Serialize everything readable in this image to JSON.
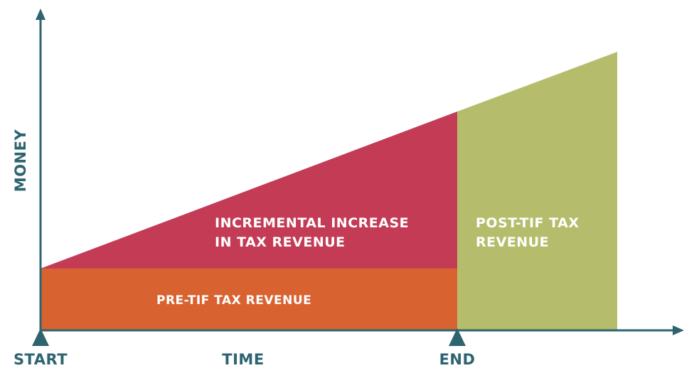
{
  "axes": {
    "y_label": "MONEY",
    "x_label": "TIME"
  },
  "markers": {
    "start": "START",
    "end": "END"
  },
  "regions": {
    "base": "PRE-TIF TAX REVENUE",
    "increment": [
      "INCREMENTAL INCREASE",
      "IN TAX REVENUE"
    ],
    "post": [
      "POST-TIF TAX",
      "REVENUE"
    ]
  }
}
